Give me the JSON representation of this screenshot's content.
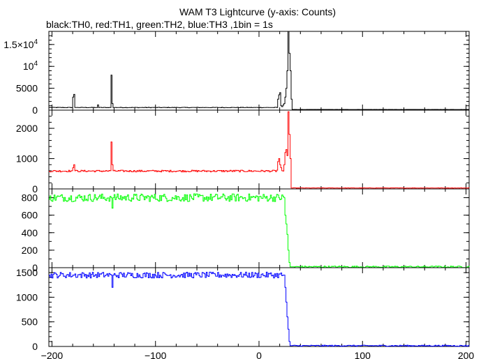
{
  "chart_data": {
    "type": "line",
    "title": "WAM T3 Lightcurve (y-axis: Counts)",
    "subtitle": "black:TH0, red:TH1, green:TH2, blue:TH3 ,1bin = 1s",
    "xlabel": "",
    "xlim": [
      -203,
      203
    ],
    "x_ticks": [
      -200,
      -100,
      0,
      100,
      200
    ],
    "x_minor_step": 20,
    "grid": false,
    "panels": [
      {
        "name": "TH0",
        "color": "#000000",
        "ylim": [
          0,
          18000
        ],
        "y_ticks": [
          0,
          5000,
          10000,
          15000
        ],
        "y_tick_labels": [
          {
            "text": "0"
          },
          {
            "text": "5000"
          },
          {
            "text": "10",
            "sup": "4"
          },
          {
            "text": "1.5×10",
            "sup": "4"
          }
        ],
        "y_minor_step": 1000,
        "baseline": {
          "pre": 600,
          "post": 150,
          "noise": 60
        },
        "points": [
          [
            -203,
            600
          ],
          [
            -181,
            600
          ],
          [
            -180,
            3000
          ],
          [
            -179,
            3600
          ],
          [
            -178,
            600
          ],
          [
            -157,
            600
          ],
          [
            -156,
            1200
          ],
          [
            -155,
            600
          ],
          [
            -144,
            600
          ],
          [
            -143,
            8000
          ],
          [
            -142,
            1500
          ],
          [
            -141,
            600
          ],
          [
            17,
            600
          ],
          [
            18,
            2500
          ],
          [
            19,
            3500
          ],
          [
            20,
            4000
          ],
          [
            21,
            1000
          ],
          [
            22,
            800
          ],
          [
            24,
            1500
          ],
          [
            25,
            3000
          ],
          [
            26,
            5000
          ],
          [
            27,
            9000
          ],
          [
            28,
            18000
          ],
          [
            29,
            13000
          ],
          [
            30,
            9000
          ],
          [
            31,
            2500
          ],
          [
            32,
            150
          ],
          [
            203,
            150
          ]
        ]
      },
      {
        "name": "TH1",
        "color": "#ff0000",
        "ylim": [
          0,
          2600
        ],
        "y_ticks": [
          0,
          1000,
          2000
        ],
        "y_tick_labels": [
          {
            "text": "0"
          },
          {
            "text": "1000"
          },
          {
            "text": "2000"
          }
        ],
        "y_minor_step": 200,
        "baseline": {
          "pre": 590,
          "post": 30,
          "noise": 30
        },
        "points": [
          [
            -203,
            580
          ],
          [
            -181,
            600
          ],
          [
            -180,
            700
          ],
          [
            -179,
            800
          ],
          [
            -178,
            600
          ],
          [
            -144,
            600
          ],
          [
            -143,
            1550
          ],
          [
            -142,
            800
          ],
          [
            -141,
            600
          ],
          [
            17,
            620
          ],
          [
            18,
            900
          ],
          [
            19,
            1000
          ],
          [
            20,
            800
          ],
          [
            21,
            700
          ],
          [
            24,
            800
          ],
          [
            25,
            1200
          ],
          [
            26,
            1300
          ],
          [
            27,
            1100
          ],
          [
            28,
            2550
          ],
          [
            29,
            1800
          ],
          [
            30,
            1000
          ],
          [
            31,
            30
          ],
          [
            203,
            30
          ]
        ]
      },
      {
        "name": "TH2",
        "color": "#00ff00",
        "ylim": [
          0,
          900
        ],
        "y_ticks": [
          0,
          200,
          400,
          600,
          800
        ],
        "y_tick_labels": [
          {
            "text": "0"
          },
          {
            "text": "200"
          },
          {
            "text": "400"
          },
          {
            "text": "600"
          },
          {
            "text": "800"
          }
        ],
        "y_minor_step": 100,
        "baseline": {
          "pre": 800,
          "post": 10,
          "noise": 45
        },
        "points": [
          [
            -203,
            780
          ],
          [
            -143,
            800
          ],
          [
            -142,
            680
          ],
          [
            -141,
            800
          ],
          [
            24,
            800
          ],
          [
            25,
            600
          ],
          [
            26,
            500
          ],
          [
            27,
            380
          ],
          [
            28,
            200
          ],
          [
            29,
            60
          ],
          [
            30,
            10
          ],
          [
            203,
            10
          ]
        ]
      },
      {
        "name": "TH3",
        "color": "#0000ff",
        "ylim": [
          0,
          1600
        ],
        "y_ticks": [
          0,
          500,
          1000,
          1500
        ],
        "y_tick_labels": [
          {
            "text": "0"
          },
          {
            "text": "500"
          },
          {
            "text": "1000"
          },
          {
            "text": "1500"
          }
        ],
        "y_minor_step": 100,
        "baseline": {
          "pre": 1450,
          "post": 15,
          "noise": 60
        },
        "points": [
          [
            -203,
            1450
          ],
          [
            -143,
            1450
          ],
          [
            -142,
            1200
          ],
          [
            -141,
            1450
          ],
          [
            24,
            1450
          ],
          [
            25,
            1200
          ],
          [
            26,
            900
          ],
          [
            27,
            600
          ],
          [
            28,
            350
          ],
          [
            29,
            100
          ],
          [
            30,
            15
          ],
          [
            203,
            15
          ]
        ]
      }
    ]
  }
}
